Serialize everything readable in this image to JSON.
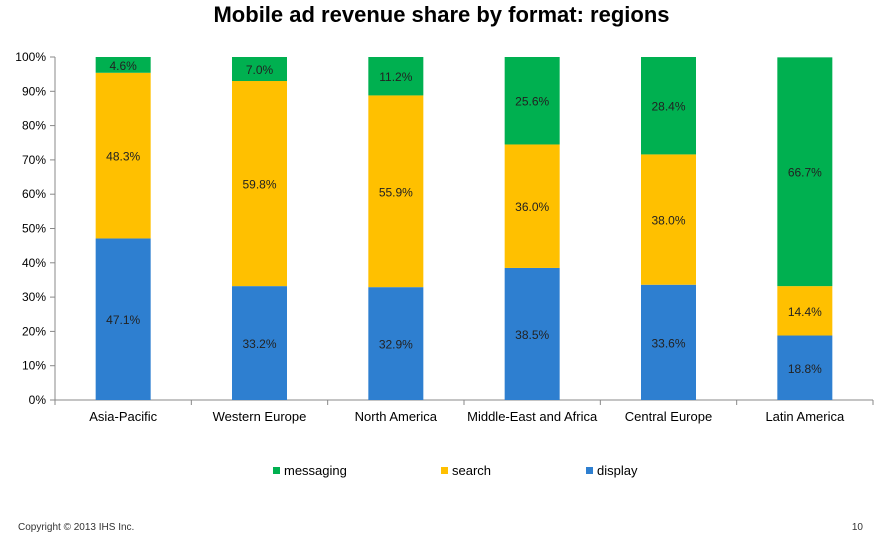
{
  "chart_data": {
    "type": "bar",
    "stacked": true,
    "title": "Mobile ad revenue share by format: regions",
    "categories": [
      "Asia-Pacific",
      "Western Europe",
      "North America",
      "Middle-East and Africa",
      "Central Europe",
      "Latin America"
    ],
    "series": [
      {
        "name": "display",
        "color": "#2E7FD0",
        "values": [
          47.1,
          33.2,
          32.9,
          38.5,
          33.6,
          18.8
        ]
      },
      {
        "name": "search",
        "color": "#FFC000",
        "values": [
          48.3,
          59.8,
          55.9,
          36.0,
          38.0,
          14.4
        ]
      },
      {
        "name": "messaging",
        "color": "#00B050",
        "values": [
          4.6,
          7.0,
          11.2,
          25.6,
          28.4,
          66.7
        ]
      }
    ],
    "ylim": [
      0,
      100
    ],
    "yticks": [
      "0%",
      "10%",
      "20%",
      "30%",
      "40%",
      "50%",
      "60%",
      "70%",
      "80%",
      "90%",
      "100%"
    ],
    "legend_order": [
      "messaging",
      "search",
      "display"
    ],
    "legend_position": "bottom",
    "grid": false
  },
  "footer": {
    "copyright": "Copyright © 2013 IHS Inc.",
    "page_number": "10"
  }
}
